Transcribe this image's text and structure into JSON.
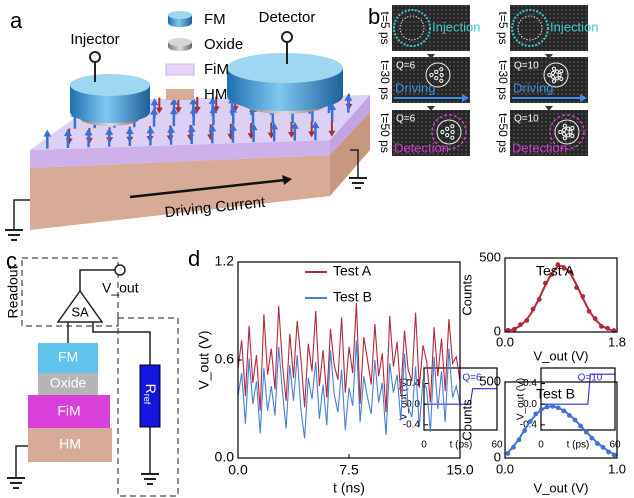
{
  "panel_labels": [
    "a",
    "b",
    "c",
    "d"
  ],
  "panel_a": {
    "legend": [
      "FM",
      "Oxide",
      "FiM",
      "HM"
    ],
    "injector": "Injector",
    "detector": "Detector",
    "current": "Driving Current"
  },
  "panel_b": {
    "columns": [
      {
        "frames": [
          {
            "time": "t=5 ps",
            "caption": "Injection"
          },
          {
            "time": "t=30 ps",
            "q": "Q=6",
            "caption": "Driving"
          },
          {
            "time": "t=50 ps",
            "q": "Q=6",
            "caption": "Detection"
          }
        ]
      },
      {
        "frames": [
          {
            "time": "t=5 ps",
            "caption": "Injection"
          },
          {
            "time": "t=30 ps",
            "q": "Q=10",
            "caption": "Driving"
          },
          {
            "time": "t=50 ps",
            "q": "Q=10",
            "caption": "Detection"
          }
        ]
      }
    ]
  },
  "panel_c": {
    "readout": "Readout",
    "vout": "V_out",
    "amplifier": "SA",
    "layers": [
      "FM",
      "Oxide",
      "FiM",
      "HM"
    ],
    "resistor": {
      "main": "R",
      "sub": "ref"
    }
  },
  "chart_data": [
    {
      "type": "line",
      "xlabel": "t (ps)",
      "ylabel": "V_out (V)",
      "annotation": "Q=6",
      "xlim": [
        0,
        60
      ],
      "xticks": [
        0,
        60
      ],
      "ylim": [
        -0.5,
        0.7
      ],
      "yticks": [
        -0.4,
        {
          "value": 0,
          "label": "0.0"
        },
        0.4
      ],
      "series": [
        {
          "color": "#2b2bd6",
          "x": [
            0,
            38,
            40,
            60
          ],
          "values": [
            0,
            0,
            0.3,
            0.3
          ]
        }
      ]
    },
    {
      "type": "line",
      "xlabel": "t (ps)",
      "ylabel": "V_out (V)",
      "annotation": "Q=10",
      "xlim": [
        0,
        60
      ],
      "xticks": [
        0,
        60
      ],
      "ylim": [
        -0.5,
        0.7
      ],
      "yticks": [
        -0.4,
        {
          "value": 0,
          "label": "0.0"
        },
        0.4
      ],
      "series": [
        {
          "color": "#2b2bd6",
          "x": [
            0,
            38,
            40,
            60
          ],
          "values": [
            0,
            0,
            0.58,
            0.58
          ]
        }
      ]
    },
    {
      "type": "line",
      "xlabel": "t (ns)",
      "ylabel": "V_out (V)",
      "xlim": [
        0,
        15
      ],
      "xticks": [
        {
          "value": 0,
          "label": "0.0"
        },
        7.5,
        {
          "value": 15,
          "label": "15.0"
        }
      ],
      "ylim": [
        0,
        1.2
      ],
      "yticks": [
        {
          "value": 0,
          "label": "0.0"
        },
        0.6,
        1.2
      ],
      "x": [
        0,
        0.25,
        0.5,
        0.75,
        1,
        1.25,
        1.5,
        1.75,
        2,
        2.25,
        2.5,
        2.75,
        3,
        3.25,
        3.5,
        3.75,
        4,
        4.25,
        4.5,
        4.75,
        5,
        5.25,
        5.5,
        5.75,
        6,
        6.25,
        6.5,
        6.75,
        7,
        7.25,
        7.5,
        7.75,
        8,
        8.25,
        8.5,
        8.75,
        9,
        9.25,
        9.5,
        9.75,
        10,
        10.25,
        10.5,
        10.75,
        11,
        11.25,
        11.5,
        11.75,
        12,
        12.25,
        12.5,
        12.75,
        13,
        13.25,
        13.5,
        13.75,
        14,
        14.25,
        14.5,
        14.75,
        15
      ],
      "series": [
        {
          "name": "Test A",
          "color": "#b3283a",
          "values": [
            0.55,
            0.72,
            0.38,
            0.81,
            0.46,
            0.63,
            0.29,
            0.88,
            0.51,
            0.67,
            0.42,
            0.93,
            0.58,
            0.35,
            0.76,
            0.49,
            0.84,
            0.61,
            0.31,
            0.7,
            0.53,
            0.9,
            0.44,
            0.66,
            0.37,
            0.79,
            0.57,
            0.48,
            0.86,
            0.4,
            0.68,
            0.52,
            0.95,
            0.33,
            0.74,
            0.6,
            0.45,
            0.82,
            0.5,
            0.64,
            0.28,
            0.87,
            0.56,
            0.71,
            0.39,
            0.78,
            0.54,
            0.47,
            0.89,
            0.43,
            0.69,
            0.59,
            0.34,
            0.8,
            0.5,
            0.73,
            0.41,
            0.85,
            0.58,
            0.62,
            0.47
          ]
        },
        {
          "name": "Test B",
          "color": "#4a7fd6",
          "values": [
            0.38,
            0.52,
            0.21,
            0.61,
            0.33,
            0.47,
            0.15,
            0.55,
            0.29,
            0.44,
            0.26,
            0.68,
            0.41,
            0.18,
            0.57,
            0.35,
            0.63,
            0.3,
            0.12,
            0.49,
            0.36,
            0.59,
            0.24,
            0.45,
            0.2,
            0.66,
            0.39,
            0.28,
            0.54,
            0.17,
            0.43,
            0.32,
            0.72,
            0.22,
            0.5,
            0.37,
            0.27,
            0.6,
            0.34,
            0.46,
            0.14,
            0.58,
            0.4,
            0.51,
            0.23,
            0.64,
            0.31,
            0.25,
            0.56,
            0.19,
            0.48,
            0.42,
            0.16,
            0.62,
            0.3,
            0.53,
            0.22,
            0.67,
            0.37,
            0.44,
            0.33
          ]
        }
      ]
    },
    {
      "type": "scatter",
      "title": "Test A",
      "xlabel": "V_out (V)",
      "ylabel": "Counts",
      "xlim": [
        0,
        1.8
      ],
      "xticks": [
        {
          "value": 0,
          "label": "0.0"
        },
        1.8
      ],
      "ylim": [
        0,
        500
      ],
      "yticks": [
        0,
        500
      ],
      "series": [
        {
          "style": "points",
          "color": "#b3283a",
          "x": [
            0.05,
            0.15,
            0.25,
            0.35,
            0.45,
            0.55,
            0.65,
            0.75,
            0.85,
            0.95,
            1.05,
            1.15,
            1.25,
            1.35,
            1.45,
            1.55,
            1.65,
            1.75
          ],
          "values": [
            12,
            18,
            50,
            78,
            155,
            220,
            330,
            390,
            455,
            430,
            405,
            300,
            240,
            140,
            90,
            38,
            25,
            10
          ]
        },
        {
          "style": "line",
          "color": "#b3283a",
          "x": [
            0.05,
            0.15,
            0.25,
            0.35,
            0.45,
            0.55,
            0.65,
            0.75,
            0.85,
            0.95,
            1.05,
            1.15,
            1.25,
            1.35,
            1.45,
            1.55,
            1.65,
            1.75
          ],
          "values": [
            8,
            20,
            43,
            84,
            146,
            228,
            318,
            397,
            444,
            444,
            397,
            318,
            228,
            146,
            84,
            43,
            20,
            8
          ]
        }
      ]
    },
    {
      "type": "scatter",
      "title": "Test B",
      "xlabel": "V_out (V)",
      "ylabel": "Counts",
      "xlim": [
        0,
        1
      ],
      "xticks": [
        {
          "value": 0,
          "label": "0.0"
        },
        {
          "value": 1,
          "label": "1.0"
        }
      ],
      "ylim": [
        0,
        500
      ],
      "yticks": [
        0,
        500
      ],
      "series": [
        {
          "style": "points",
          "color": "#3f73d3",
          "x": [
            0.025,
            0.075,
            0.125,
            0.175,
            0.225,
            0.275,
            0.325,
            0.375,
            0.425,
            0.475,
            0.525,
            0.575,
            0.625,
            0.675,
            0.725,
            0.775,
            0.825,
            0.875,
            0.925,
            0.975
          ],
          "values": [
            30,
            70,
            120,
            180,
            240,
            290,
            320,
            335,
            340,
            330,
            310,
            280,
            250,
            210,
            170,
            130,
            95,
            70,
            40,
            20
          ]
        },
        {
          "style": "line",
          "color": "#3f73d3",
          "x": [
            0.025,
            0.075,
            0.125,
            0.175,
            0.225,
            0.275,
            0.325,
            0.375,
            0.425,
            0.475,
            0.525,
            0.575,
            0.625,
            0.675,
            0.725,
            0.775,
            0.825,
            0.875,
            0.925,
            0.975
          ],
          "values": [
            35,
            75,
            125,
            185,
            240,
            285,
            318,
            336,
            340,
            332,
            312,
            284,
            250,
            212,
            172,
            135,
            100,
            70,
            45,
            25
          ]
        }
      ]
    }
  ]
}
